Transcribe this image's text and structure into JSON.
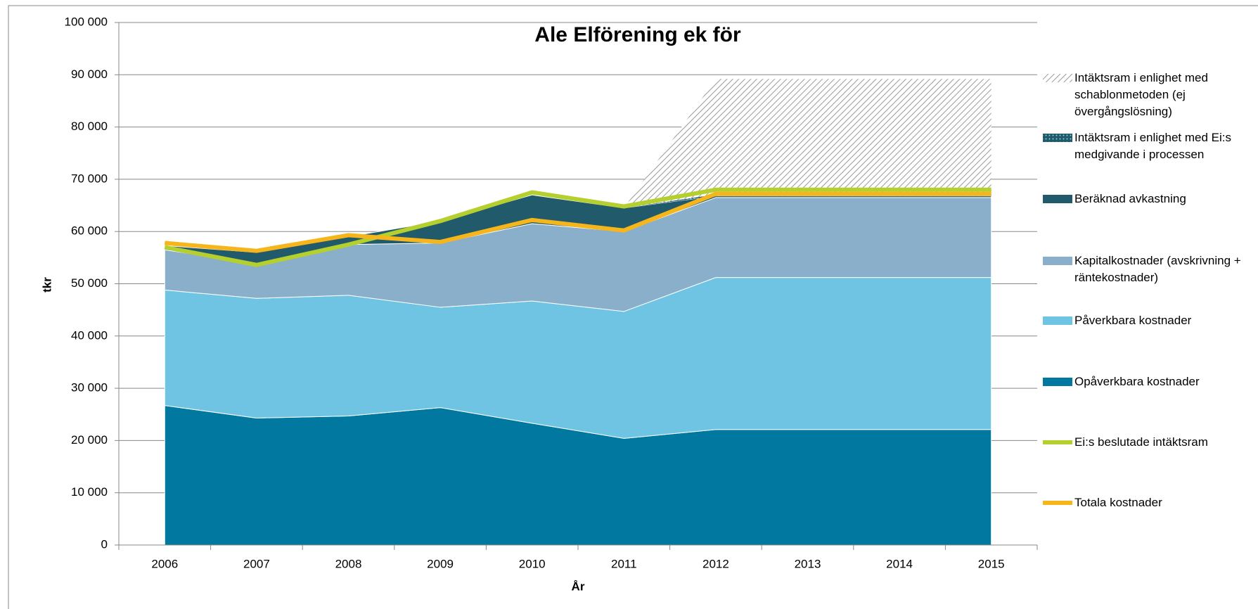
{
  "chart_data": {
    "type": "stacked_area",
    "title": "Ale Elförening ek för",
    "xlabel": "År",
    "ylabel": "tkr",
    "categories": [
      "2006",
      "2007",
      "2008",
      "2009",
      "2010",
      "2011",
      "2012",
      "2013",
      "2014",
      "2015"
    ],
    "ylim": [
      0,
      100000
    ],
    "yticks": [
      0,
      {
        "value": 10000,
        "label": "10 000"
      },
      {
        "value": 20000,
        "label": "20 000"
      },
      {
        "value": 30000,
        "label": "30 000"
      },
      {
        "value": 40000,
        "label": "40 000"
      },
      {
        "value": 50000,
        "label": "50 000"
      },
      {
        "value": 60000,
        "label": "60 000"
      },
      {
        "value": 70000,
        "label": "70 000"
      },
      {
        "value": 80000,
        "label": "80 000"
      },
      {
        "value": 90000,
        "label": "90 000"
      },
      {
        "value": 100000,
        "label": "100 000"
      }
    ],
    "grid": true,
    "series": [
      {
        "name": "Intäktsram i enlighet med schablonmetoden (ej övergångslösning)",
        "type": "area",
        "color": "#9a9a9a",
        "pattern": "hatch",
        "values": [
          0,
          0,
          0,
          0,
          0,
          0,
          22100,
          22100,
          22100,
          22100
        ]
      },
      {
        "name": "Intäktsram i enlighet med Ei:s medgivande i processen",
        "type": "area",
        "color": "#1f5a6a",
        "pattern": "dots",
        "values": [
          0,
          0,
          0,
          0,
          0,
          0,
          300,
          300,
          300,
          300
        ]
      },
      {
        "name": "Beräknad avkastning",
        "type": "area",
        "color": "#215a6a",
        "values": [
          800,
          2200,
          1500,
          4200,
          5500,
          4500,
          300,
          300,
          300,
          300
        ]
      },
      {
        "name": "Kapitalkostnader (avskrivning + räntekostnader)",
        "type": "area",
        "color": "#8aafca",
        "values": [
          7700,
          6600,
          9700,
          12300,
          14800,
          15300,
          15300,
          15300,
          15300,
          15300
        ]
      },
      {
        "name": "Påverkbara kostnader",
        "type": "area",
        "color": "#6ec4e2",
        "values": [
          22100,
          22900,
          23100,
          19200,
          23400,
          24300,
          29100,
          29100,
          29100,
          29100
        ]
      },
      {
        "name": "Opåverkbara kostnader",
        "type": "area",
        "color": "#00789f",
        "values": [
          26700,
          24300,
          24700,
          26300,
          23300,
          20400,
          22100,
          22100,
          22100,
          22100
        ]
      },
      {
        "name": "Ei:s beslutade intäktsram",
        "type": "line",
        "color": "#b5cf2f",
        "values": [
          57000,
          53600,
          57500,
          62000,
          67500,
          64800,
          68000,
          68000,
          68000,
          68000
        ]
      },
      {
        "name": "Totala kostnader",
        "type": "line",
        "color": "#f7b51c",
        "values": [
          57800,
          56300,
          59300,
          58000,
          62200,
          60200,
          67200,
          67200,
          67200,
          67200
        ]
      }
    ]
  }
}
